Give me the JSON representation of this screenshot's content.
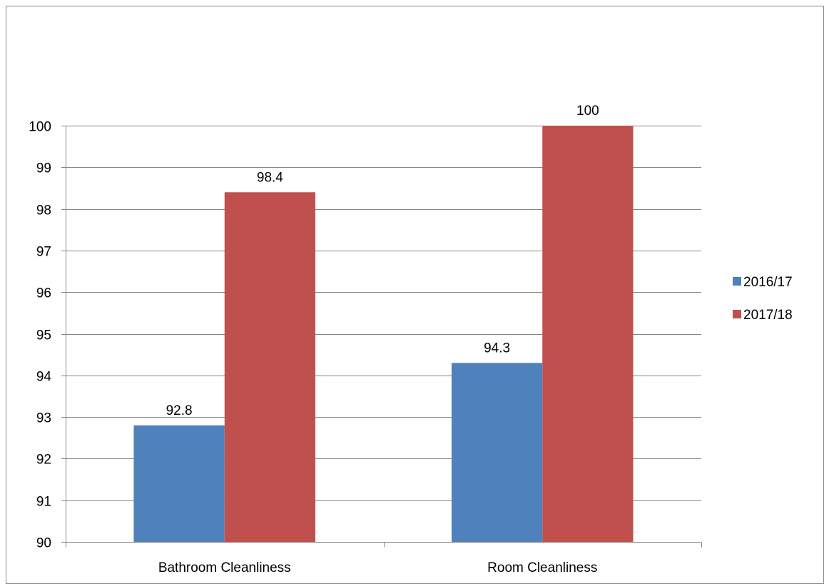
{
  "chart_data": {
    "type": "bar",
    "categories": [
      "Bathroom Cleanliness",
      "Room Cleanliness"
    ],
    "series": [
      {
        "name": "2016/17",
        "values": [
          92.8,
          94.3
        ],
        "color": "#4F81BD"
      },
      {
        "name": "2017/18",
        "values": [
          98.4,
          100
        ],
        "color": "#C0504D"
      }
    ],
    "data_labels": [
      [
        "92.8",
        "94.3"
      ],
      [
        "98.4",
        "100"
      ]
    ],
    "title": "",
    "xlabel": "",
    "ylabel": "",
    "ylim": [
      90,
      100
    ],
    "ytick_labels": [
      "90",
      "91",
      "92",
      "93",
      "94",
      "95",
      "96",
      "97",
      "98",
      "99",
      "100"
    ],
    "grid": true,
    "legend_position": "right",
    "colors": {
      "gridline": "#868686",
      "frame": "#868686",
      "text": "#000000"
    }
  }
}
